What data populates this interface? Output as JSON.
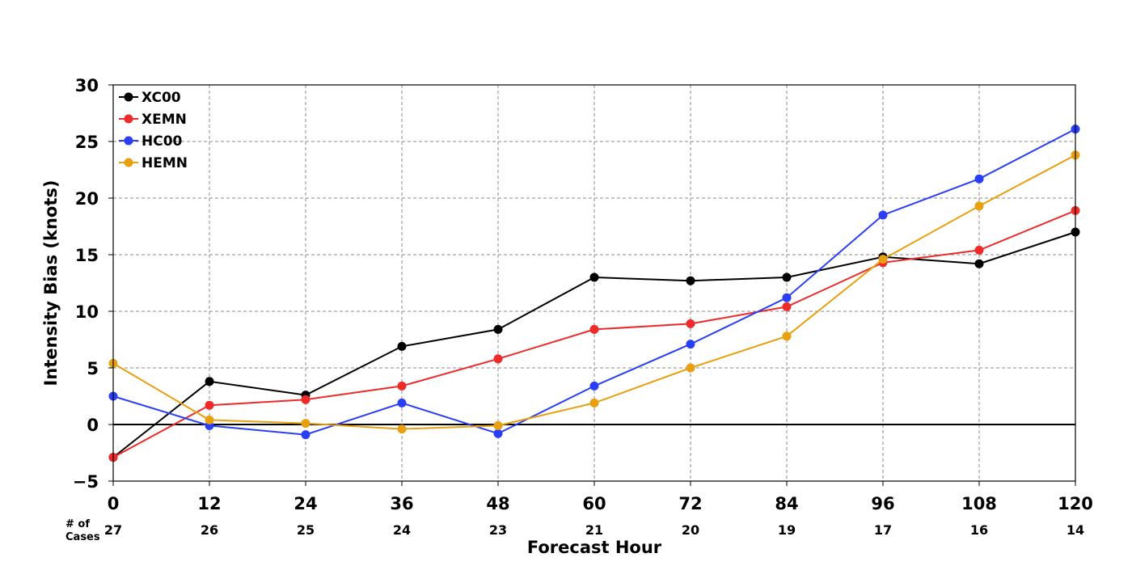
{
  "chart_data": {
    "type": "line",
    "title": "",
    "xlabel": "Forecast Hour",
    "ylabel": "Intensity Bias (knots)",
    "x": [
      0,
      12,
      24,
      36,
      48,
      60,
      72,
      84,
      96,
      108,
      120
    ],
    "x_tick_labels": [
      "0",
      "12",
      "24",
      "36",
      "48",
      "60",
      "72",
      "84",
      "96",
      "108",
      "120"
    ],
    "xlim": [
      0,
      120
    ],
    "ylim": [
      -5,
      30
    ],
    "y_ticks": [
      -5,
      0,
      5,
      10,
      15,
      20,
      25,
      30
    ],
    "y_tick_labels": [
      "−5",
      "0",
      "5",
      "10",
      "15",
      "20",
      "25",
      "30"
    ],
    "grid": true,
    "zero_line": true,
    "legend_position": "top-left",
    "cases_label_line1": "# of",
    "cases_label_line2": "Cases",
    "cases": [
      "27",
      "26",
      "25",
      "24",
      "23",
      "21",
      "20",
      "19",
      "17",
      "16",
      "14"
    ],
    "series": [
      {
        "name": "XC00",
        "color": "#000000",
        "values": [
          -2.9,
          3.8,
          2.6,
          6.9,
          8.4,
          13.0,
          12.7,
          13.0,
          14.8,
          14.2,
          17.0
        ]
      },
      {
        "name": "XEMN",
        "color": "#ee2a2a",
        "values": [
          -2.9,
          1.7,
          2.2,
          3.4,
          5.8,
          8.4,
          8.9,
          10.4,
          14.3,
          15.4,
          18.9
        ]
      },
      {
        "name": "HC00",
        "color": "#2a3ff5",
        "values": [
          2.5,
          -0.1,
          -0.9,
          1.9,
          -0.8,
          3.4,
          7.1,
          11.2,
          18.5,
          21.7,
          26.1
        ]
      },
      {
        "name": "HEMN",
        "color": "#e8a010",
        "values": [
          5.4,
          0.4,
          0.1,
          -0.4,
          -0.1,
          1.9,
          5.0,
          7.8,
          14.6,
          19.3,
          23.8
        ]
      }
    ]
  }
}
